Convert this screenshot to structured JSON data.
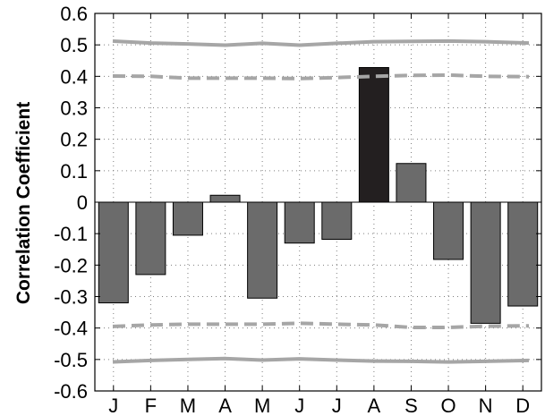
{
  "chart_data": {
    "type": "bar",
    "title": "",
    "xlabel": "",
    "ylabel": "Correlation Coefficient",
    "categories": [
      "J",
      "F",
      "M",
      "A",
      "M",
      "J",
      "J",
      "A",
      "S",
      "O",
      "N",
      "D"
    ],
    "values": [
      -0.32,
      -0.23,
      -0.105,
      0.022,
      -0.305,
      -0.13,
      -0.118,
      0.428,
      0.123,
      -0.182,
      -0.385,
      -0.33
    ],
    "highlight_index": 7,
    "ylim": [
      -0.6,
      0.6
    ],
    "yticks": [
      "0.6",
      "0.5",
      "0.4",
      "0.3",
      "0.2",
      "0.1",
      "0",
      "-0.1",
      "-0.2",
      "-0.3",
      "-0.4",
      "-0.5",
      "-0.6"
    ],
    "grid": true,
    "reference_lines": [
      {
        "style": "solid",
        "values": [
          0.512,
          0.506,
          0.503,
          0.499,
          0.505,
          0.499,
          0.505,
          0.51,
          0.511,
          0.512,
          0.51,
          0.506
        ]
      },
      {
        "style": "dashed",
        "values": [
          0.401,
          0.4,
          0.394,
          0.394,
          0.394,
          0.393,
          0.396,
          0.4,
          0.403,
          0.404,
          0.4,
          0.399
        ]
      },
      {
        "style": "dashed",
        "values": [
          -0.395,
          -0.39,
          -0.388,
          -0.388,
          -0.388,
          -0.385,
          -0.388,
          -0.39,
          -0.398,
          -0.398,
          -0.394,
          -0.393
        ]
      },
      {
        "style": "solid",
        "values": [
          -0.508,
          -0.503,
          -0.5,
          -0.497,
          -0.502,
          -0.498,
          -0.502,
          -0.505,
          -0.506,
          -0.508,
          -0.506,
          -0.503
        ]
      }
    ],
    "colors": {
      "bar": "#6b6b6b",
      "highlight_bar": "#231f20",
      "reference_line": "#a6a6a6",
      "grid": "#7f7f7f",
      "axis": "#000000"
    }
  }
}
